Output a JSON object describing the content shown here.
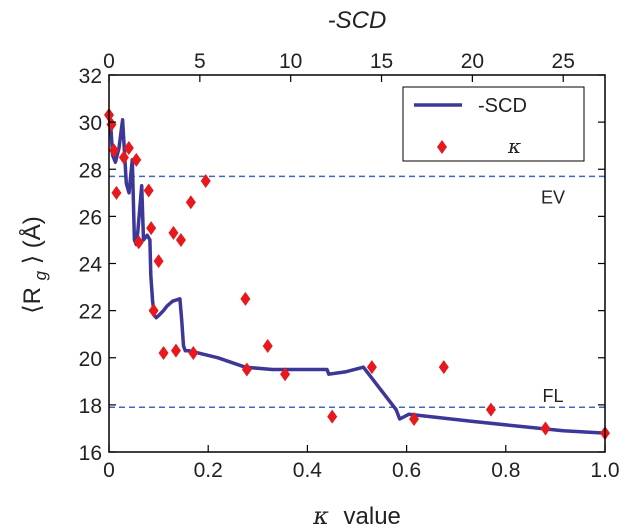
{
  "chart_data": {
    "type": "line",
    "title": "",
    "top_axis": {
      "label": "-SCD",
      "ticks": [
        0,
        5,
        10,
        15,
        20,
        25
      ],
      "range": [
        0,
        27.3
      ]
    },
    "x_axis": {
      "label_symbol": "κ",
      "label_text": "value",
      "ticks": [
        "0",
        "0.2",
        "0.4",
        "0.6",
        "0.8",
        "1.0"
      ],
      "range": [
        0,
        1.0
      ]
    },
    "y_axis": {
      "label_symbol": "⟨R",
      "label_sub": "g",
      "label_tail": "⟩ (Å)",
      "ticks": [
        16,
        18,
        20,
        22,
        24,
        26,
        28,
        30,
        32
      ],
      "range": [
        16,
        32
      ]
    },
    "reference_lines": [
      {
        "label": "EV",
        "y": 27.7,
        "color": "#3b6bbf"
      },
      {
        "label": "FL",
        "y": 17.9,
        "color": "#3b6bbf"
      }
    ],
    "legend": {
      "position": "top-right",
      "entries": [
        {
          "label": "-SCD",
          "marker": "line",
          "color": "#3d3797"
        },
        {
          "label": "κ",
          "marker": "diamond",
          "color": "#e8191c"
        }
      ]
    },
    "series": [
      {
        "name": "-SCD",
        "axis": "top",
        "color": "#3d3797",
        "x": [
          0.0,
          0.1,
          0.2,
          0.35,
          0.55,
          0.75,
          0.95,
          1.1,
          1.28,
          1.4,
          1.5,
          1.58,
          1.8,
          1.9,
          2.1,
          2.25,
          2.3,
          2.4,
          2.5,
          2.6,
          2.75,
          3.0,
          3.2,
          3.5,
          3.9,
          4.0,
          4.1,
          4.2,
          4.4,
          6.0,
          7.5,
          9.0,
          11.0,
          12.0,
          12.1,
          13.0,
          14.0,
          15.5,
          15.8,
          16.0,
          16.5,
          20.0,
          25.0,
          27.3
        ],
        "y": [
          30.2,
          29.8,
          28.6,
          28.3,
          28.9,
          30.1,
          27.4,
          27.0,
          28.4,
          25.0,
          24.8,
          25.3,
          27.3,
          25.0,
          25.2,
          25.0,
          23.5,
          22.4,
          21.8,
          21.7,
          21.8,
          22.0,
          22.2,
          22.4,
          22.5,
          21.6,
          20.5,
          20.3,
          20.3,
          20.0,
          19.6,
          19.5,
          19.5,
          19.5,
          19.3,
          19.4,
          19.6,
          18.1,
          17.8,
          17.4,
          17.6,
          17.3,
          16.9,
          16.8
        ]
      },
      {
        "name": "κ",
        "axis": "bottom",
        "color": "#e8191c",
        "x": [
          0.0,
          0.005,
          0.01,
          0.015,
          0.03,
          0.04,
          0.055,
          0.06,
          0.08,
          0.085,
          0.09,
          0.1,
          0.11,
          0.13,
          0.135,
          0.145,
          0.165,
          0.17,
          0.195,
          0.275,
          0.278,
          0.32,
          0.355,
          0.45,
          0.53,
          0.615,
          0.675,
          0.77,
          0.88,
          1.0
        ],
        "y": [
          30.3,
          29.9,
          28.8,
          27.0,
          28.5,
          28.9,
          28.4,
          24.9,
          27.1,
          25.5,
          22.0,
          24.1,
          20.2,
          25.3,
          20.3,
          25.0,
          26.6,
          20.2,
          27.5,
          22.5,
          19.5,
          20.5,
          19.3,
          17.5,
          19.6,
          17.4,
          19.6,
          17.8,
          17.0,
          16.8
        ]
      }
    ]
  }
}
